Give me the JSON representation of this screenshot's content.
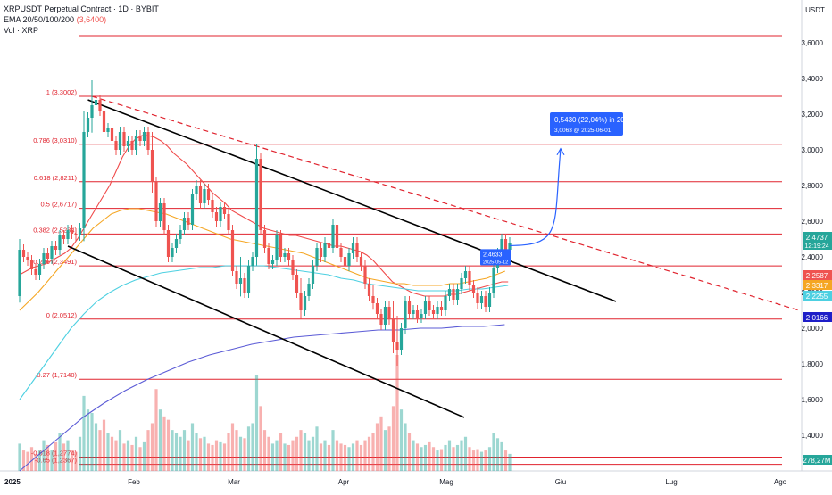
{
  "header": {
    "symbol_line": "XRPUSDT Perpetual Contract · 1D · BYBIT",
    "ema_line": "EMA 20/50/100/200",
    "ema_value": "(3,6400)",
    "vol_line": "Vol · XRP",
    "currency": "USDT"
  },
  "colors": {
    "background": "#ffffff",
    "candle_up": "#26a69a",
    "candle_down": "#ef5350",
    "fib_line": "#e0232e",
    "channel_line": "#000000",
    "dashed_trend": "#e0232e",
    "ema20": "#f04a4a",
    "ema50": "#f5a623",
    "ema100": "#4dd0e1",
    "ema200": "#5b5bd6",
    "projection": "#2962ff"
  },
  "chart_data": {
    "type": "candlestick",
    "title": "XRPUSDT Perpetual Contract · 1D · BYBIT",
    "ylabel": "USDT",
    "ylim": [
      1.2,
      3.8
    ],
    "x_tick_labels": [
      "2025",
      "Feb",
      "Mar",
      "Apr",
      "Mag",
      "Giu",
      "Lug",
      "Ago"
    ],
    "y_tick_labels": [
      "3,6000",
      "3,4000",
      "3,2000",
      "3,0000",
      "2,8000",
      "2,6000",
      "2,4000",
      "2,2000",
      "2,0000",
      "1,8000",
      "1,6000",
      "1,4000"
    ],
    "fib_levels": [
      {
        "label": "1 (3,3002)",
        "value": 3.3002
      },
      {
        "label": "0.786 (3,0310)",
        "value": 3.031
      },
      {
        "label": "0.618 (2,8211)",
        "value": 2.8211
      },
      {
        "label": "0.5 (2,6717)",
        "value": 2.6717
      },
      {
        "label": "0.382 (2,5284)",
        "value": 2.5284
      },
      {
        "label": "0.236 (2,3491)",
        "value": 2.3491
      },
      {
        "label": "0 (2,0512)",
        "value": 2.0512
      },
      {
        "label": "-0.27 (1,7140)",
        "value": 1.714
      },
      {
        "label": "-0.618 (1,2774)",
        "value": 1.2774
      },
      {
        "label": "-0.65 (1,2367)",
        "value": 1.2367
      }
    ],
    "extra_levels": [
      3.64
    ],
    "price_labels": [
      {
        "text": "2,4737",
        "sub": "12:19:24",
        "color": "#26a69a"
      },
      {
        "text": "2,2587",
        "color": "#ef5350"
      },
      {
        "text": "2,3317",
        "color": "#f5a623"
      },
      {
        "text": "2,2255",
        "color": "#4dd0e1"
      },
      {
        "text": "2,0166",
        "color": "#1e1ec8"
      },
      {
        "text": "278,27M",
        "color": "#26a69a"
      }
    ],
    "projection": {
      "line1": "0,5430 (22,04%) in 20g",
      "line2": "3,0063 @ 2025-06-01",
      "tag1": "2,4633",
      "tag2": "2025-05-12"
    },
    "candles": [
      [
        0,
        2.18,
        2.44
      ],
      [
        1,
        2.44,
        2.4
      ],
      [
        2,
        2.4,
        2.38
      ],
      [
        3,
        2.38,
        2.33
      ],
      [
        4,
        2.33,
        2.3
      ],
      [
        5,
        2.3,
        2.36
      ],
      [
        6,
        2.36,
        2.42
      ],
      [
        7,
        2.42,
        2.39
      ],
      [
        8,
        2.39,
        2.46
      ],
      [
        9,
        2.46,
        2.44
      ],
      [
        10,
        2.44,
        2.52
      ],
      [
        11,
        2.52,
        2.5
      ],
      [
        12,
        2.5,
        2.55
      ],
      [
        13,
        2.55,
        2.53
      ],
      [
        14,
        2.53,
        2.52
      ],
      [
        15,
        2.52,
        2.56
      ],
      [
        16,
        2.56,
        3.1
      ],
      [
        17,
        3.1,
        3.18
      ],
      [
        18,
        3.18,
        3.25
      ],
      [
        19,
        3.25,
        3.28
      ],
      [
        20,
        3.28,
        3.22
      ],
      [
        21,
        3.22,
        3.1
      ],
      [
        22,
        3.1,
        3.12
      ],
      [
        23,
        3.12,
        3.05
      ],
      [
        24,
        3.05,
        3.0
      ],
      [
        25,
        3.0,
        3.1
      ],
      [
        26,
        3.1,
        3.02
      ],
      [
        27,
        3.02,
        3.05
      ],
      [
        28,
        3.05,
        3.0
      ],
      [
        29,
        3.0,
        3.08
      ],
      [
        30,
        3.08,
        3.05
      ],
      [
        31,
        3.05,
        3.1
      ],
      [
        32,
        3.1,
        3.0
      ],
      [
        33,
        3.0,
        2.82
      ],
      [
        34,
        2.82,
        2.6
      ],
      [
        35,
        2.6,
        2.7
      ],
      [
        36,
        2.7,
        2.55
      ],
      [
        37,
        2.55,
        2.4
      ],
      [
        38,
        2.4,
        2.45
      ],
      [
        39,
        2.45,
        2.5
      ],
      [
        40,
        2.5,
        2.55
      ],
      [
        41,
        2.55,
        2.62
      ],
      [
        42,
        2.62,
        2.58
      ],
      [
        43,
        2.58,
        2.75
      ],
      [
        44,
        2.75,
        2.8
      ],
      [
        45,
        2.8,
        2.7
      ],
      [
        46,
        2.7,
        2.78
      ],
      [
        47,
        2.78,
        2.72
      ],
      [
        48,
        2.72,
        2.65
      ],
      [
        49,
        2.65,
        2.6
      ],
      [
        50,
        2.6,
        2.68
      ],
      [
        51,
        2.68,
        2.64
      ],
      [
        52,
        2.64,
        2.55
      ],
      [
        53,
        2.55,
        2.32
      ],
      [
        54,
        2.32,
        2.25
      ],
      [
        55,
        2.25,
        2.28
      ],
      [
        56,
        2.28,
        2.2
      ],
      [
        57,
        2.2,
        2.35
      ],
      [
        58,
        2.35,
        2.4
      ],
      [
        59,
        2.4,
        2.95
      ],
      [
        60,
        2.95,
        2.55
      ],
      [
        61,
        2.55,
        2.45
      ],
      [
        62,
        2.45,
        2.36
      ],
      [
        63,
        2.36,
        2.38
      ],
      [
        64,
        2.38,
        2.52
      ],
      [
        65,
        2.52,
        2.4
      ],
      [
        66,
        2.4,
        2.42
      ],
      [
        67,
        2.42,
        2.38
      ],
      [
        68,
        2.38,
        2.3
      ],
      [
        69,
        2.3,
        2.2
      ],
      [
        70,
        2.2,
        2.1
      ],
      [
        71,
        2.1,
        2.18
      ],
      [
        72,
        2.18,
        2.25
      ],
      [
        73,
        2.25,
        2.35
      ],
      [
        74,
        2.35,
        2.45
      ],
      [
        75,
        2.45,
        2.4
      ],
      [
        76,
        2.4,
        2.48
      ],
      [
        77,
        2.48,
        2.45
      ],
      [
        78,
        2.45,
        2.58
      ],
      [
        79,
        2.58,
        2.45
      ],
      [
        80,
        2.45,
        2.4
      ],
      [
        81,
        2.4,
        2.35
      ],
      [
        82,
        2.35,
        2.42
      ],
      [
        83,
        2.42,
        2.48
      ],
      [
        84,
        2.48,
        2.4
      ],
      [
        85,
        2.4,
        2.35
      ],
      [
        86,
        2.35,
        2.25
      ],
      [
        87,
        2.25,
        2.18
      ],
      [
        88,
        2.18,
        2.14
      ],
      [
        89,
        2.14,
        2.08
      ],
      [
        90,
        2.08,
        2.02
      ],
      [
        91,
        2.02,
        2.12
      ],
      [
        92,
        2.12,
        2.05
      ],
      [
        93,
        2.05,
        1.92
      ],
      [
        94,
        1.92,
        1.88
      ],
      [
        95,
        1.88,
        2.0
      ],
      [
        96,
        2.0,
        2.15
      ],
      [
        97,
        2.15,
        2.08
      ],
      [
        98,
        2.08,
        2.1
      ],
      [
        99,
        2.1,
        2.06
      ],
      [
        100,
        2.06,
        2.08
      ],
      [
        101,
        2.08,
        2.15
      ],
      [
        102,
        2.15,
        2.1
      ],
      [
        103,
        2.1,
        2.08
      ],
      [
        104,
        2.08,
        2.12
      ],
      [
        105,
        2.12,
        2.1
      ],
      [
        106,
        2.1,
        2.18
      ],
      [
        107,
        2.18,
        2.22
      ],
      [
        108,
        2.22,
        2.16
      ],
      [
        109,
        2.16,
        2.22
      ],
      [
        110,
        2.22,
        2.28
      ],
      [
        111,
        2.28,
        2.32
      ],
      [
        112,
        2.32,
        2.24
      ],
      [
        113,
        2.24,
        2.2
      ],
      [
        114,
        2.2,
        2.14
      ],
      [
        115,
        2.14,
        2.18
      ],
      [
        116,
        2.18,
        2.12
      ],
      [
        117,
        2.12,
        2.2
      ],
      [
        118,
        2.2,
        2.34
      ],
      [
        119,
        2.34,
        2.42
      ],
      [
        120,
        2.42,
        2.5
      ],
      [
        121,
        2.5,
        2.44
      ],
      [
        122,
        2.44,
        2.48
      ]
    ],
    "candle_wicks": [
      [
        0,
        0.06
      ],
      [
        16,
        0.12
      ],
      [
        18,
        0.14
      ],
      [
        33,
        0.1
      ],
      [
        55,
        0.12
      ],
      [
        59,
        0.08
      ],
      [
        70,
        0.08
      ],
      [
        88,
        0.06
      ],
      [
        93,
        0.1
      ],
      [
        94,
        0.15
      ]
    ],
    "volume": [
      40,
      30,
      28,
      35,
      25,
      30,
      45,
      38,
      30,
      42,
      55,
      40,
      45,
      30,
      28,
      50,
      110,
      90,
      85,
      70,
      60,
      75,
      55,
      50,
      45,
      60,
      40,
      45,
      38,
      50,
      35,
      42,
      60,
      70,
      120,
      90,
      80,
      75,
      60,
      55,
      50,
      60,
      45,
      70,
      55,
      48,
      50,
      40,
      38,
      45,
      42,
      40,
      55,
      70,
      60,
      50,
      48,
      65,
      70,
      140,
      95,
      60,
      50,
      40,
      45,
      55,
      40,
      38,
      45,
      50,
      60,
      55,
      45,
      50,
      65,
      40,
      45,
      38,
      60,
      45,
      40,
      38,
      35,
      40,
      45,
      38,
      45,
      50,
      55,
      70,
      80,
      60,
      65,
      95,
      170,
      90,
      70,
      55,
      45,
      40,
      35,
      38,
      42,
      35,
      30,
      32,
      38,
      45,
      35,
      38,
      45,
      50,
      35,
      30,
      32,
      28,
      30,
      35,
      55,
      48,
      42,
      30,
      25
    ],
    "ema20": [
      2.3,
      2.32,
      2.34,
      2.35,
      2.36,
      2.38,
      2.4,
      2.42,
      2.45,
      2.5,
      2.56,
      2.62,
      2.68,
      2.74,
      2.8,
      2.88,
      2.96,
      3.02,
      3.06,
      3.08,
      3.08,
      3.07,
      3.05,
      3.02,
      2.98,
      2.95,
      2.92,
      2.88,
      2.84,
      2.8,
      2.76,
      2.73,
      2.7,
      2.66,
      2.64,
      2.62,
      2.6,
      2.58,
      2.56,
      2.55,
      2.54,
      2.53,
      2.52,
      2.52,
      2.51,
      2.5,
      2.49,
      2.48,
      2.47,
      2.46,
      2.46,
      2.45,
      2.44,
      2.43,
      2.41,
      2.38,
      2.34,
      2.3,
      2.26,
      2.24,
      2.22,
      2.2,
      2.19,
      2.18,
      2.18,
      2.18,
      2.18,
      2.19,
      2.19,
      2.2,
      2.21,
      2.22,
      2.23,
      2.24,
      2.25,
      2.26,
      2.26
    ],
    "ema50": [
      2.1,
      2.15,
      2.2,
      2.26,
      2.32,
      2.38,
      2.44,
      2.5,
      2.56,
      2.6,
      2.64,
      2.66,
      2.67,
      2.67,
      2.66,
      2.65,
      2.64,
      2.62,
      2.6,
      2.58,
      2.56,
      2.54,
      2.52,
      2.5,
      2.49,
      2.48,
      2.47,
      2.46,
      2.45,
      2.44,
      2.43,
      2.42,
      2.4,
      2.38,
      2.36,
      2.34,
      2.32,
      2.3,
      2.28,
      2.27,
      2.26,
      2.25,
      2.25,
      2.24,
      2.24,
      2.24,
      2.24,
      2.25,
      2.25,
      2.26,
      2.27,
      2.28,
      2.3,
      2.32
    ],
    "ema100": [
      1.6,
      1.7,
      1.8,
      1.9,
      2.0,
      2.08,
      2.15,
      2.2,
      2.24,
      2.27,
      2.29,
      2.31,
      2.32,
      2.33,
      2.34,
      2.34,
      2.35,
      2.35,
      2.35,
      2.35,
      2.34,
      2.33,
      2.32,
      2.31,
      2.3,
      2.28,
      2.27,
      2.25,
      2.24,
      2.23,
      2.22,
      2.21,
      2.21,
      2.21,
      2.21,
      2.22,
      2.22,
      2.23,
      2.24
    ],
    "ema200": [
      1.2,
      1.3,
      1.4,
      1.5,
      1.58,
      1.65,
      1.71,
      1.76,
      1.81,
      1.85,
      1.88,
      1.91,
      1.93,
      1.95,
      1.96,
      1.97,
      1.98,
      1.99,
      1.99,
      2.0,
      2.0,
      2.01,
      2.01,
      2.02
    ]
  }
}
